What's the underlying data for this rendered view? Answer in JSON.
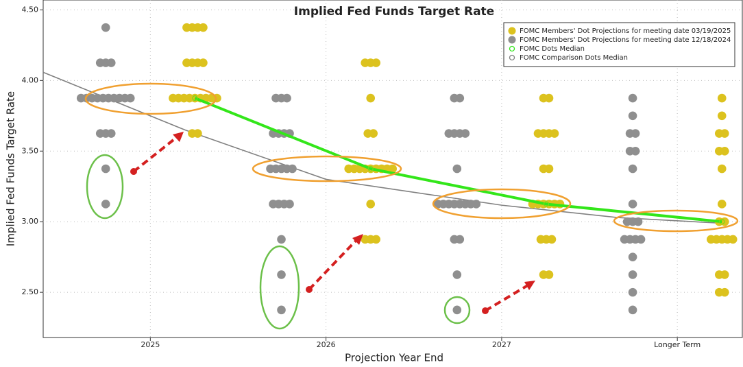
{
  "chart_data": {
    "type": "dot",
    "title": "Implied Fed Funds Target Rate",
    "x_label": "Projection Year End",
    "y_label": "Implied Fed Funds Target Rate",
    "xlim": [
      -0.61,
      3.37
    ],
    "xticks": [
      {
        "value": 0,
        "label": "2025"
      },
      {
        "value": 1,
        "label": "2026"
      },
      {
        "value": 2,
        "label": "2027"
      },
      {
        "value": 3,
        "label": "Longer Term"
      }
    ],
    "ylim": [
      2.18,
      4.57
    ],
    "yticks": [
      {
        "value": 2.5,
        "label": "2.50"
      },
      {
        "value": 3,
        "label": "3.00"
      },
      {
        "value": 3.5,
        "label": "3.50"
      },
      {
        "value": 4,
        "label": "4.00"
      },
      {
        "value": 4.5,
        "label": "4.50"
      }
    ],
    "grid": true,
    "series": [
      {
        "name": "FOMC Members' Dot Projections for meeting date 03/19/2025",
        "color": "#dcc21e",
        "marker": "dot",
        "dots": [
          [
            [
              4.375,
              4
            ],
            [
              4.125,
              4
            ],
            [
              3.875,
              9
            ],
            [
              3.625,
              2
            ]
          ],
          [
            [
              4.125,
              3
            ],
            [
              3.875,
              1
            ],
            [
              3.625,
              2
            ],
            [
              3.375,
              9
            ],
            [
              3.125,
              1
            ],
            [
              2.875,
              3
            ]
          ],
          [
            [
              3.875,
              2
            ],
            [
              3.625,
              4
            ],
            [
              3.375,
              2
            ],
            [
              3.125,
              6
            ],
            [
              2.875,
              3
            ],
            [
              2.625,
              2
            ]
          ],
          [
            [
              3.875,
              1
            ],
            [
              3.75,
              1
            ],
            [
              3.625,
              2
            ],
            [
              3.5,
              2
            ],
            [
              3.375,
              1
            ],
            [
              3.125,
              1
            ],
            [
              3,
              2
            ],
            [
              2.875,
              5
            ],
            [
              2.625,
              2
            ],
            [
              2.5,
              2
            ]
          ]
        ]
      },
      {
        "name": "FOMC Members' Dot Projections for meeting date 12/18/2024",
        "color": "#8f8f8f",
        "marker": "dot",
        "dots": [
          [
            [
              4.375,
              1
            ],
            [
              4.125,
              3
            ],
            [
              3.875,
              10
            ],
            [
              3.625,
              3
            ],
            [
              3.375,
              1
            ],
            [
              3.125,
              1
            ]
          ],
          [
            [
              3.875,
              3
            ],
            [
              3.625,
              4
            ],
            [
              3.375,
              5
            ],
            [
              3.125,
              4
            ],
            [
              2.875,
              1
            ],
            [
              2.625,
              1
            ],
            [
              2.375,
              1
            ]
          ],
          [
            [
              3.875,
              2
            ],
            [
              3.625,
              4
            ],
            [
              3.375,
              1
            ],
            [
              3.125,
              8
            ],
            [
              2.875,
              2
            ],
            [
              2.625,
              1
            ],
            [
              2.375,
              1
            ]
          ],
          [
            [
              3.875,
              1
            ],
            [
              3.75,
              1
            ],
            [
              3.625,
              2
            ],
            [
              3.5,
              2
            ],
            [
              3.375,
              1
            ],
            [
              3.125,
              1
            ],
            [
              3,
              3
            ],
            [
              2.875,
              4
            ],
            [
              2.75,
              1
            ],
            [
              2.625,
              1
            ],
            [
              2.5,
              1
            ],
            [
              2.375,
              1
            ]
          ]
        ]
      },
      {
        "name": "FOMC Dots Median",
        "color": "#33e61a",
        "marker": "ring",
        "x": [
          0.254,
          1.254,
          2.254,
          3.254
        ],
        "values": [
          3.875,
          3.375,
          3.125,
          3
        ]
      },
      {
        "name": "FOMC Comparison Dots Median",
        "color": "#808080",
        "marker": "ring",
        "x": [
          -0.61,
          0.197,
          1.0,
          2.0,
          2.657,
          3.24
        ],
        "values": [
          4.058,
          3.65,
          3.3,
          3.117,
          3.03,
          2.99
        ]
      }
    ]
  }
}
